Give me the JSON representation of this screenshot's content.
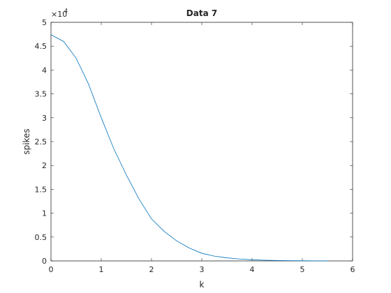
{
  "chart_data": {
    "type": "line",
    "title": "Data 7",
    "x_label": "k",
    "y_label": "spikes",
    "y_scale_label": "×10",
    "y_scale_exponent": "4",
    "x": [
      0,
      0.25,
      0.5,
      0.75,
      1,
      1.25,
      1.5,
      1.75,
      2,
      2.25,
      2.5,
      2.75,
      3,
      3.25,
      3.5,
      3.75,
      4,
      4.25,
      4.5,
      4.75,
      5,
      5.25,
      5.5
    ],
    "series": [
      {
        "name": "spikes",
        "color": "#0072bd",
        "values": [
          47400,
          46000,
          42500,
          37000,
          30000,
          23500,
          18000,
          13000,
          8800,
          6200,
          4200,
          2700,
          1600,
          1000,
          650,
          400,
          250,
          150,
          90,
          50,
          30,
          15,
          10
        ]
      }
    ],
    "xlim": [
      0,
      6
    ],
    "xticks": [
      0,
      1,
      2,
      3,
      4,
      5,
      6
    ],
    "ylim": [
      0,
      50000
    ],
    "yticks": [
      {
        "value": 0,
        "label": "0"
      },
      {
        "value": 5000,
        "label": "0.5"
      },
      {
        "value": 10000,
        "label": "1"
      },
      {
        "value": 15000,
        "label": "1.5"
      },
      {
        "value": 20000,
        "label": "2"
      },
      {
        "value": 25000,
        "label": "2.5"
      },
      {
        "value": 30000,
        "label": "3"
      },
      {
        "value": 35000,
        "label": "3.5"
      },
      {
        "value": 40000,
        "label": "4"
      },
      {
        "value": 45000,
        "label": "4.5"
      },
      {
        "value": 50000,
        "label": "5"
      }
    ],
    "grid": false
  }
}
